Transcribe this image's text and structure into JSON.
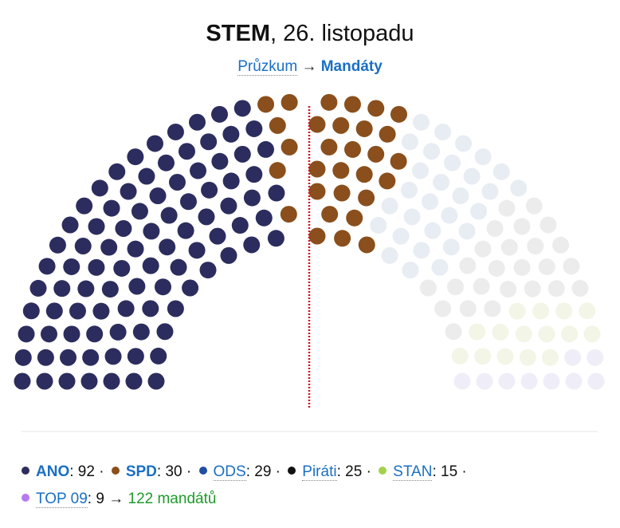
{
  "chart_data": {
    "type": "parliament",
    "title": [
      "STEM",
      ", 26. listopadu"
    ],
    "subtitle": [
      "Průzkum",
      "→",
      "Mandáty"
    ],
    "series": [
      {
        "name": "ANO",
        "color": "#2c2d5e",
        "seat_color": "#2c2d5e",
        "value": 92
      },
      {
        "name": "SPD",
        "color": "#8a4f1c",
        "seat_color": "#8a4f1c",
        "value": 30
      },
      {
        "name": "ODS",
        "color": "#1f4f9e",
        "seat_color": "#e8ecf3",
        "value": 29
      },
      {
        "name": "Piráti",
        "color": "#111111",
        "seat_color": "#ececec",
        "value": 25
      },
      {
        "name": "STAN",
        "color": "#a3d14a",
        "seat_color": "#f3f5e7",
        "value": 15
      },
      {
        "name": "TOP 09",
        "color": "#b57af0",
        "seat_color": "#efeef8",
        "value": 9
      }
    ],
    "value_separator": ":",
    "legend_separator": "·",
    "result_arrow": "→",
    "result": "122 mandátů",
    "majority_line_color": "#d0141a"
  }
}
